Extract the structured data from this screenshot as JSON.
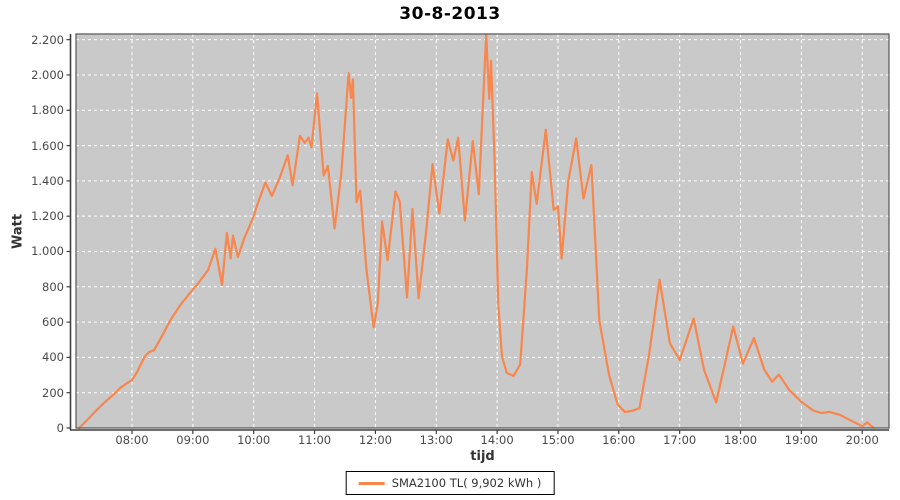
{
  "chart_data": {
    "type": "line",
    "title": "30-8-2013",
    "xlabel": "tijd",
    "ylabel": "Watt",
    "legend_position": "bottom",
    "grid": {
      "color": "#ffffff",
      "style": "dashed",
      "on": true
    },
    "plot_background": "#c9c9c9",
    "axis_color": "#3f3f3f",
    "xlim_hours": [
      7.08,
      20.44
    ],
    "ylim": [
      0,
      2232
    ],
    "x_ticks": [
      {
        "value": 8,
        "label": "08:00"
      },
      {
        "value": 9,
        "label": "09:00"
      },
      {
        "value": 10,
        "label": "10:00"
      },
      {
        "value": 11,
        "label": "11:00"
      },
      {
        "value": 12,
        "label": "12:00"
      },
      {
        "value": 13,
        "label": "13:00"
      },
      {
        "value": 14,
        "label": "14:00"
      },
      {
        "value": 15,
        "label": "15:00"
      },
      {
        "value": 16,
        "label": "16:00"
      },
      {
        "value": 17,
        "label": "17:00"
      },
      {
        "value": 18,
        "label": "18:00"
      },
      {
        "value": 19,
        "label": "19:00"
      },
      {
        "value": 20,
        "label": "20:00"
      }
    ],
    "y_ticks": [
      {
        "value": 0,
        "label": "0"
      },
      {
        "value": 200,
        "label": "200"
      },
      {
        "value": 400,
        "label": "400"
      },
      {
        "value": 600,
        "label": "600"
      },
      {
        "value": 800,
        "label": "800"
      },
      {
        "value": 1000,
        "label": "1.000"
      },
      {
        "value": 1200,
        "label": "1.200"
      },
      {
        "value": 1400,
        "label": "1.400"
      },
      {
        "value": 1600,
        "label": "1.600"
      },
      {
        "value": 1800,
        "label": "1.800"
      },
      {
        "value": 2000,
        "label": "2.000"
      },
      {
        "value": 2200,
        "label": "2.200"
      }
    ],
    "series": [
      {
        "name": "SMA2100 TL( 9,902 kWh )",
        "color": "#f8864d",
        "points_hours_watt": [
          [
            7.13,
            0
          ],
          [
            7.25,
            40
          ],
          [
            7.4,
            95
          ],
          [
            7.55,
            145
          ],
          [
            7.7,
            190
          ],
          [
            7.8,
            225
          ],
          [
            7.9,
            250
          ],
          [
            8.0,
            272
          ],
          [
            8.08,
            315
          ],
          [
            8.2,
            400
          ],
          [
            8.28,
            430
          ],
          [
            8.36,
            440
          ],
          [
            8.46,
            500
          ],
          [
            8.63,
            610
          ],
          [
            8.79,
            695
          ],
          [
            8.96,
            768
          ],
          [
            9.1,
            825
          ],
          [
            9.25,
            895
          ],
          [
            9.37,
            1015
          ],
          [
            9.48,
            810
          ],
          [
            9.56,
            1105
          ],
          [
            9.62,
            960
          ],
          [
            9.66,
            1090
          ],
          [
            9.74,
            968
          ],
          [
            9.85,
            1080
          ],
          [
            9.99,
            1190
          ],
          [
            10.05,
            1255
          ],
          [
            10.19,
            1390
          ],
          [
            10.3,
            1315
          ],
          [
            10.43,
            1420
          ],
          [
            10.56,
            1545
          ],
          [
            10.64,
            1375
          ],
          [
            10.76,
            1655
          ],
          [
            10.84,
            1615
          ],
          [
            10.9,
            1645
          ],
          [
            10.95,
            1590
          ],
          [
            11.04,
            1895
          ],
          [
            11.15,
            1430
          ],
          [
            11.22,
            1485
          ],
          [
            11.33,
            1130
          ],
          [
            11.44,
            1440
          ],
          [
            11.56,
            2010
          ],
          [
            11.6,
            1870
          ],
          [
            11.63,
            1975
          ],
          [
            11.69,
            1280
          ],
          [
            11.75,
            1345
          ],
          [
            11.85,
            905
          ],
          [
            11.97,
            570
          ],
          [
            12.04,
            705
          ],
          [
            12.11,
            1170
          ],
          [
            12.2,
            950
          ],
          [
            12.33,
            1340
          ],
          [
            12.4,
            1285
          ],
          [
            12.52,
            740
          ],
          [
            12.61,
            1240
          ],
          [
            12.71,
            735
          ],
          [
            12.83,
            1100
          ],
          [
            12.94,
            1495
          ],
          [
            13.05,
            1215
          ],
          [
            13.19,
            1635
          ],
          [
            13.28,
            1515
          ],
          [
            13.36,
            1645
          ],
          [
            13.47,
            1175
          ],
          [
            13.6,
            1625
          ],
          [
            13.7,
            1325
          ],
          [
            13.82,
            2230
          ],
          [
            13.87,
            1865
          ],
          [
            13.9,
            2080
          ],
          [
            13.96,
            1500
          ],
          [
            14.02,
            700
          ],
          [
            14.08,
            405
          ],
          [
            14.16,
            312
          ],
          [
            14.27,
            295
          ],
          [
            14.38,
            360
          ],
          [
            14.49,
            900
          ],
          [
            14.57,
            1450
          ],
          [
            14.65,
            1270
          ],
          [
            14.8,
            1690
          ],
          [
            14.93,
            1235
          ],
          [
            15.0,
            1255
          ],
          [
            15.06,
            960
          ],
          [
            15.17,
            1400
          ],
          [
            15.3,
            1640
          ],
          [
            15.42,
            1300
          ],
          [
            15.55,
            1490
          ],
          [
            15.68,
            610
          ],
          [
            15.84,
            300
          ],
          [
            15.98,
            135
          ],
          [
            16.1,
            90
          ],
          [
            16.22,
            98
          ],
          [
            16.34,
            112
          ],
          [
            16.5,
            420
          ],
          [
            16.67,
            840
          ],
          [
            16.84,
            480
          ],
          [
            17.0,
            385
          ],
          [
            17.23,
            620
          ],
          [
            17.4,
            330
          ],
          [
            17.6,
            145
          ],
          [
            17.76,
            390
          ],
          [
            17.88,
            575
          ],
          [
            18.04,
            365
          ],
          [
            18.22,
            510
          ],
          [
            18.39,
            330
          ],
          [
            18.52,
            262
          ],
          [
            18.63,
            303
          ],
          [
            18.8,
            215
          ],
          [
            19.0,
            148
          ],
          [
            19.2,
            98
          ],
          [
            19.33,
            85
          ],
          [
            19.46,
            92
          ],
          [
            19.64,
            73
          ],
          [
            19.84,
            38
          ],
          [
            20.0,
            10
          ],
          [
            20.08,
            32
          ],
          [
            20.18,
            2
          ]
        ]
      }
    ]
  }
}
